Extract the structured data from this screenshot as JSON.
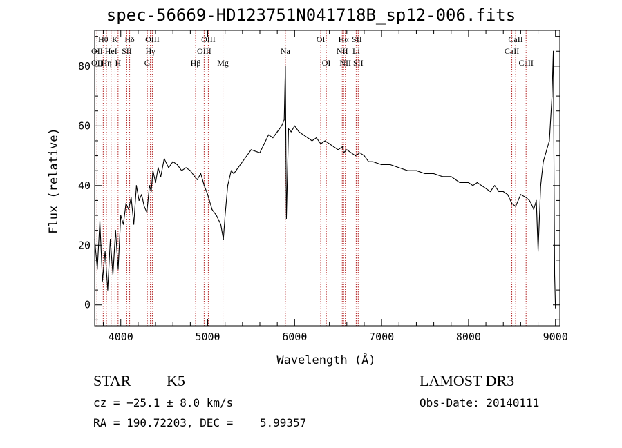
{
  "chart_data": {
    "type": "line",
    "title": "spec-56669-HD123751N041718B_sp12-006.fits",
    "xlabel": "Wavelength (Å)",
    "ylabel": "Flux (relative)",
    "xlim": [
      3700,
      9050
    ],
    "ylim": [
      -7,
      92
    ],
    "xticks": [
      4000,
      5000,
      6000,
      7000,
      8000,
      9000
    ],
    "yticks": [
      0,
      20,
      40,
      60,
      80
    ],
    "xtick_labels": [
      "4000",
      "5000",
      "6000",
      "7000",
      "8000",
      "9000"
    ],
    "ytick_labels": [
      "0",
      "20",
      "40",
      "60",
      "80"
    ],
    "series": [
      {
        "name": "flux",
        "color": "#000000",
        "x": [
          3700,
          3730,
          3760,
          3790,
          3820,
          3850,
          3880,
          3910,
          3940,
          3970,
          4000,
          4030,
          4060,
          4090,
          4120,
          4150,
          4180,
          4210,
          4240,
          4270,
          4300,
          4330,
          4350,
          4370,
          4400,
          4430,
          4460,
          4500,
          4550,
          4600,
          4650,
          4700,
          4750,
          4800,
          4850,
          4880,
          4920,
          4960,
          5000,
          5050,
          5100,
          5150,
          5180,
          5200,
          5230,
          5270,
          5300,
          5400,
          5500,
          5600,
          5700,
          5750,
          5800,
          5850,
          5880,
          5893,
          5905,
          5930,
          5960,
          6000,
          6050,
          6100,
          6150,
          6200,
          6250,
          6300,
          6350,
          6400,
          6450,
          6500,
          6550,
          6563,
          6600,
          6650,
          6700,
          6750,
          6800,
          6850,
          6900,
          7000,
          7100,
          7200,
          7300,
          7400,
          7500,
          7600,
          7700,
          7800,
          7900,
          8000,
          8050,
          8100,
          8150,
          8200,
          8250,
          8300,
          8350,
          8400,
          8450,
          8498,
          8542,
          8600,
          8662,
          8700,
          8720,
          8750,
          8780,
          8800,
          8830,
          8860,
          8900,
          8930,
          8960,
          8975,
          8990,
          9000
        ],
        "y": [
          22,
          12,
          28,
          8,
          18,
          5,
          22,
          10,
          25,
          12,
          30,
          27,
          34,
          32,
          36,
          27,
          40,
          35,
          37,
          33,
          31,
          40,
          38,
          45,
          41,
          46,
          43,
          49,
          46,
          48,
          47,
          45,
          46,
          45,
          43,
          42,
          44,
          40,
          37,
          32,
          30,
          27,
          22,
          30,
          40,
          45,
          44,
          48,
          52,
          51,
          57,
          56,
          58,
          60,
          62,
          80,
          29,
          59,
          58,
          60,
          58,
          57,
          56,
          55,
          56,
          54,
          55,
          54,
          53,
          52,
          53,
          51,
          52,
          51,
          50,
          51,
          50,
          48,
          48,
          47,
          47,
          46,
          45,
          45,
          44,
          44,
          43,
          43,
          41,
          41,
          40,
          41,
          40,
          39,
          38,
          40,
          38,
          38,
          37,
          34,
          33,
          37,
          36,
          35,
          34,
          32,
          35,
          18,
          40,
          48,
          52,
          55,
          70,
          85,
          10,
          -1
        ]
      }
    ],
    "lines": [
      {
        "label": "Hθ",
        "wl": 3798,
        "row": 0
      },
      {
        "label": "OII",
        "wl": 3727,
        "row": 1
      },
      {
        "label": "OII",
        "wl": 3727,
        "row": 2
      },
      {
        "label": "K",
        "wl": 3934,
        "row": 0
      },
      {
        "label": "HeI",
        "wl": 3889,
        "row": 1
      },
      {
        "label": "Hη",
        "wl": 3835,
        "row": 2
      },
      {
        "label": "Hδ",
        "wl": 4102,
        "row": 0
      },
      {
        "label": "SII",
        "wl": 4069,
        "row": 1
      },
      {
        "label": "H",
        "wl": 3969,
        "row": 2
      },
      {
        "label": "OIII",
        "wl": 4363,
        "row": 0
      },
      {
        "label": "Hγ",
        "wl": 4341,
        "row": 1
      },
      {
        "label": "G",
        "wl": 4305,
        "row": 2
      },
      {
        "label": "OIII",
        "wl": 5007,
        "row": 0
      },
      {
        "label": "OIII",
        "wl": 4959,
        "row": 1
      },
      {
        "label": "Hβ",
        "wl": 4861,
        "row": 2
      },
      {
        "label": "Mg",
        "wl": 5175,
        "row": 2
      },
      {
        "label": "Na",
        "wl": 5893,
        "row": 1
      },
      {
        "label": "OI",
        "wl": 6300,
        "row": 0
      },
      {
        "label": "OI",
        "wl": 6364,
        "row": 2
      },
      {
        "label": "Hα",
        "wl": 6563,
        "row": 0
      },
      {
        "label": "SII",
        "wl": 6716,
        "row": 0
      },
      {
        "label": "NII",
        "wl": 6548,
        "row": 1
      },
      {
        "label": "Li",
        "wl": 6708,
        "row": 1
      },
      {
        "label": "NII",
        "wl": 6583,
        "row": 2
      },
      {
        "label": "SII",
        "wl": 6731,
        "row": 2
      },
      {
        "label": "CaII",
        "wl": 8542,
        "row": 0
      },
      {
        "label": "CaII",
        "wl": 8498,
        "row": 1
      },
      {
        "label": "CaII",
        "wl": 8662,
        "row": 2
      }
    ],
    "line_color": "#b22222"
  },
  "info": {
    "object_class": "STAR",
    "subclass": "K5",
    "survey": "LAMOST DR3",
    "cz": "cz = −25.1 ± 8.0 km/s",
    "obs_date": "Obs-Date: 20140111",
    "coords": "RA = 190.72203, DEC =    5.99357"
  }
}
